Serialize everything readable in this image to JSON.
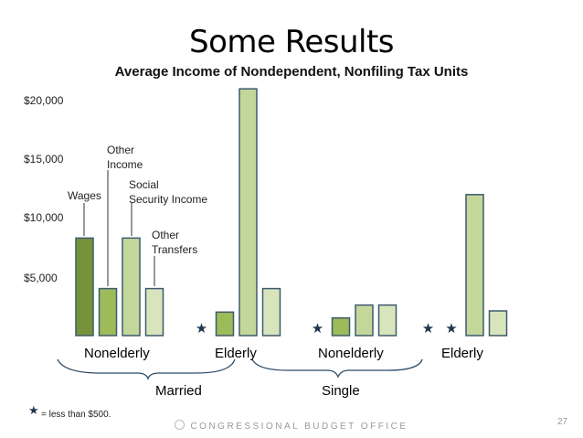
{
  "slide": {
    "title": "Some Results",
    "page_number": "27",
    "footer": "CONGRESSIONAL BUDGET OFFICE",
    "footer_icon": "cbo-seal-icon"
  },
  "chart_data": {
    "type": "bar",
    "title": "Average Income of Nondependent, Nonfiling Tax Units",
    "ylim": [
      0,
      20000
    ],
    "yticks": [
      5000,
      10000,
      15000,
      20000
    ],
    "ytick_labels": [
      "$5,000",
      "$10,000",
      "$15,000",
      "$20,000"
    ],
    "grid": false,
    "series_names": [
      "Wages",
      "Other Income",
      "Social Security Income",
      "Other Transfers"
    ],
    "series_colors": [
      "#77923a",
      "#9dbb59",
      "#c4d79b",
      "#d8e4bc"
    ],
    "annotations": {
      "wages": "Wages",
      "other_income": [
        "Other",
        "Income"
      ],
      "social_security": [
        "Social",
        "Security Income"
      ],
      "other_transfers": [
        "Other",
        "Transfers"
      ]
    },
    "groups": [
      {
        "category": "Nonelderly",
        "parent": "Married",
        "values": [
          8300,
          4000,
          8300,
          4000
        ]
      },
      {
        "category": "Elderly",
        "parent": "Married",
        "values": [
          null,
          2000,
          21000,
          4000
        ]
      },
      {
        "category": "Nonelderly",
        "parent": "Single",
        "values": [
          null,
          1500,
          2600,
          2600
        ]
      },
      {
        "category": "Elderly",
        "parent": "Single",
        "values": [
          null,
          null,
          12000,
          2100
        ]
      }
    ],
    "parents": [
      "Married",
      "Single"
    ],
    "footnote": "= less than $500.",
    "null_marker": "star-icon"
  }
}
